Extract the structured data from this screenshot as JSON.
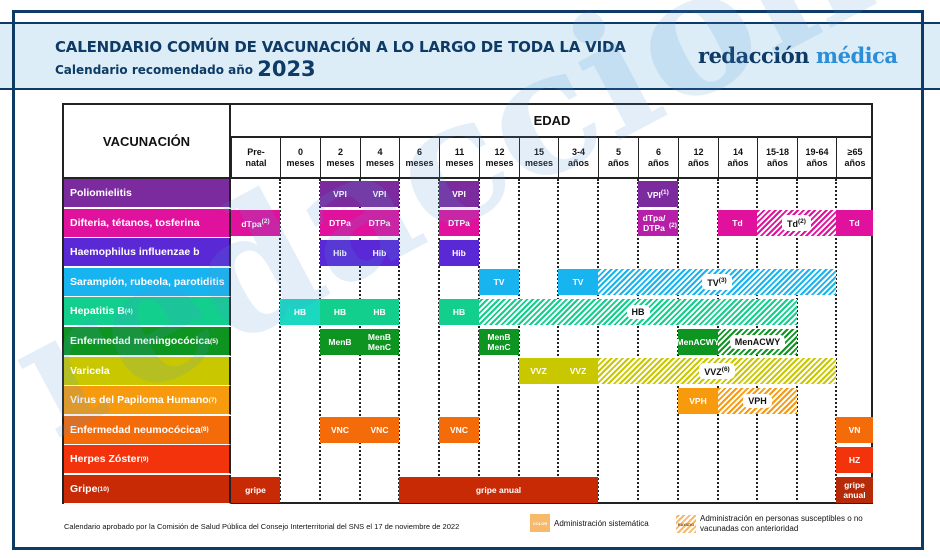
{
  "header": {
    "title": "CALENDARIO COMÚN DE VACUNACIÓN A LO LARGO DE TODA LA VIDA",
    "subtitle": "Calendario recomendado año",
    "year": "2023",
    "logo_main": "redacción",
    "logo_accent": "médica",
    "watermark": "redacción médica"
  },
  "table": {
    "vac_header": "VACUNACIÓN",
    "edad_header": "EDAD",
    "ages": [
      {
        "l1": "Pre-",
        "l2": "natal"
      },
      {
        "l1": "0",
        "l2": "meses"
      },
      {
        "l1": "2",
        "l2": "meses"
      },
      {
        "l1": "4",
        "l2": "meses"
      },
      {
        "l1": "6",
        "l2": "meses"
      },
      {
        "l1": "11",
        "l2": "meses"
      },
      {
        "l1": "12",
        "l2": "meses"
      },
      {
        "l1": "15",
        "l2": "meses"
      },
      {
        "l1": "3-4",
        "l2": "años"
      },
      {
        "l1": "5",
        "l2": "años"
      },
      {
        "l1": "6",
        "l2": "años"
      },
      {
        "l1": "12",
        "l2": "años"
      },
      {
        "l1": "14",
        "l2": "años"
      },
      {
        "l1": "15-18",
        "l2": "años"
      },
      {
        "l1": "19-64",
        "l2": "años"
      },
      {
        "l1": "≥65",
        "l2": "años"
      }
    ],
    "rows": [
      {
        "label": "Poliomielitis",
        "note": "",
        "color": "#7b2b9e",
        "cells": [
          {
            "col": 2,
            "span": 1,
            "text": "VPI",
            "sup": "",
            "style": "solid"
          },
          {
            "col": 3,
            "span": 1,
            "text": "VPI",
            "sup": "",
            "style": "solid"
          },
          {
            "col": 5,
            "span": 1,
            "text": "VPI",
            "sup": "",
            "style": "solid"
          },
          {
            "col": 10,
            "span": 1,
            "text": "VPI",
            "sup": "(1)",
            "style": "solid"
          }
        ]
      },
      {
        "label": "Difteria, tétanos, tosferina",
        "note": "",
        "color": "#e0119c",
        "cells": [
          {
            "col": 0,
            "span": 1,
            "text": "dTpa",
            "sup": "(2)",
            "style": "solid"
          },
          {
            "col": 2,
            "span": 1,
            "text": "DTPa",
            "sup": "",
            "style": "solid"
          },
          {
            "col": 3,
            "span": 1,
            "text": "DTPa",
            "sup": "",
            "style": "solid"
          },
          {
            "col": 5,
            "span": 1,
            "text": "DTPa",
            "sup": "",
            "style": "solid"
          },
          {
            "col": 10,
            "span": 1,
            "text": "dTpa/ DTPa",
            "sup": "(2)",
            "style": "solid",
            "color": "#b81fa8"
          },
          {
            "col": 12,
            "span": 1,
            "text": "Td",
            "sup": "",
            "style": "solid"
          },
          {
            "col": 13,
            "span": 2,
            "text": "Td",
            "sup": "(2)",
            "style": "hatch"
          },
          {
            "col": 15,
            "span": 1,
            "text": "Td",
            "sup": "",
            "style": "solid"
          }
        ]
      },
      {
        "label": "Haemophilus influenzae b",
        "note": "",
        "color": "#5b28d6",
        "cells": [
          {
            "col": 2,
            "span": 1,
            "text": "Hib",
            "sup": "",
            "style": "solid"
          },
          {
            "col": 3,
            "span": 1,
            "text": "Hib",
            "sup": "",
            "style": "solid"
          },
          {
            "col": 5,
            "span": 1,
            "text": "Hib",
            "sup": "",
            "style": "solid"
          }
        ]
      },
      {
        "label": "Sarampión, rubeola, parotiditis",
        "note": "",
        "color": "#17b4ef",
        "cells": [
          {
            "col": 6,
            "span": 1,
            "text": "TV",
            "sup": "",
            "style": "solid"
          },
          {
            "col": 8,
            "span": 1,
            "text": "TV",
            "sup": "",
            "style": "solid"
          },
          {
            "col": 9,
            "span": 6,
            "text": "TV",
            "sup": "(3)",
            "style": "hatch"
          }
        ]
      },
      {
        "label": "Hepatitis B",
        "note": "(4)",
        "color": "#12cf8e",
        "cells": [
          {
            "col": 1,
            "span": 1,
            "text": "HB",
            "sup": "",
            "style": "solid",
            "color": "#1ad9c0"
          },
          {
            "col": 2,
            "span": 1,
            "text": "HB",
            "sup": "",
            "style": "solid"
          },
          {
            "col": 3,
            "span": 1,
            "text": "HB",
            "sup": "",
            "style": "solid"
          },
          {
            "col": 5,
            "span": 1,
            "text": "HB",
            "sup": "",
            "style": "solid"
          },
          {
            "col": 6,
            "span": 8,
            "text": "HB",
            "sup": "",
            "style": "hatch"
          }
        ]
      },
      {
        "label": "Enfermedad meningocócica",
        "note": "(5)",
        "color": "#0d9421",
        "cells": [
          {
            "col": 2,
            "span": 1,
            "text": "MenB",
            "sup": "",
            "style": "solid"
          },
          {
            "col": 3,
            "span": 1,
            "text": "MenB MenC",
            "sup": "",
            "style": "solid"
          },
          {
            "col": 6,
            "span": 1,
            "text": "MenB MenC",
            "sup": "",
            "style": "solid"
          },
          {
            "col": 11,
            "span": 1,
            "text": "MenACWY",
            "sup": "",
            "style": "solid"
          },
          {
            "col": 12,
            "span": 2,
            "text": "MenACWY",
            "sup": "",
            "style": "hatch"
          }
        ]
      },
      {
        "label": "Varicela",
        "note": "",
        "color": "#c9c800",
        "cells": [
          {
            "col": 7,
            "span": 1,
            "text": "VVZ",
            "sup": "",
            "style": "solid"
          },
          {
            "col": 8,
            "span": 1,
            "text": "VVZ",
            "sup": "",
            "style": "solid"
          },
          {
            "col": 9,
            "span": 6,
            "text": "VVZ",
            "sup": "(6)",
            "style": "hatch"
          }
        ]
      },
      {
        "label": "Virus del Papiloma Humano",
        "note": "(7)",
        "color": "#f79a0e",
        "cells": [
          {
            "col": 11,
            "span": 1,
            "text": "VPH",
            "sup": "",
            "style": "solid"
          },
          {
            "col": 12,
            "span": 2,
            "text": "VPH",
            "sup": "",
            "style": "hatch"
          }
        ]
      },
      {
        "label": "Enfermedad neumocócica",
        "note": "(8)",
        "color": "#f46b0a",
        "cells": [
          {
            "col": 2,
            "span": 1,
            "text": "VNC",
            "sup": "",
            "style": "solid"
          },
          {
            "col": 3,
            "span": 1,
            "text": "VNC",
            "sup": "",
            "style": "solid"
          },
          {
            "col": 5,
            "span": 1,
            "text": "VNC",
            "sup": "",
            "style": "solid"
          },
          {
            "col": 15,
            "span": 1,
            "text": "VN",
            "sup": "",
            "style": "solid"
          }
        ]
      },
      {
        "label": "Herpes Zóster",
        "note": "(9)",
        "color": "#f2330c",
        "cells": [
          {
            "col": 15,
            "span": 1,
            "text": "HZ",
            "sup": "",
            "style": "solid"
          }
        ]
      },
      {
        "label": "Gripe",
        "note": "(10)",
        "color": "#c92a06",
        "cells": [
          {
            "col": 0,
            "span": 1,
            "text": "gripe",
            "sup": "",
            "style": "solid"
          },
          {
            "col": 4,
            "span": 5,
            "text": "gripe anual",
            "sup": "",
            "style": "solid"
          },
          {
            "col": 15,
            "span": 1,
            "text": "gripe anual",
            "sup": "",
            "style": "solid",
            "color": "#b52a08"
          }
        ]
      }
    ]
  },
  "footer": {
    "note": "Calendario aprobado por la Comisión de Salud Pública del Consejo Interterritorial del SNS el 17 de noviembre de 2022",
    "legend": [
      {
        "swatch_label": "COLOR",
        "text": "Administración sistemática"
      },
      {
        "swatch_label": "RAYADO",
        "text": "Administración en personas susceptibles o no vacunadas con anterioridad"
      }
    ]
  }
}
